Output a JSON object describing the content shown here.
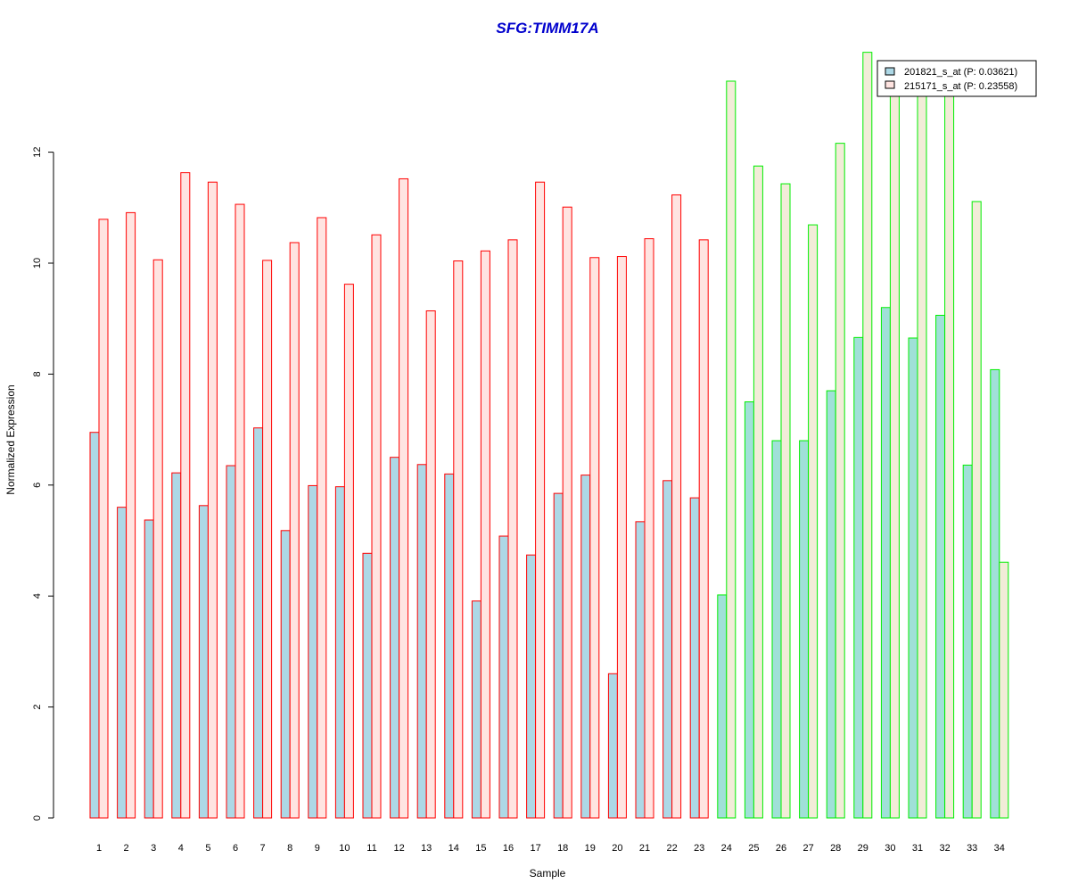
{
  "chart_data": {
    "type": "bar",
    "title": "SFG:TIMM17A",
    "xlabel": "Sample",
    "ylabel": "Normalized Expression",
    "ylim": [
      0,
      14
    ],
    "yticks": [
      "0",
      "2",
      "4",
      "6",
      "8",
      "10",
      "12"
    ],
    "categories": [
      "1",
      "2",
      "3",
      "4",
      "5",
      "6",
      "7",
      "8",
      "9",
      "10",
      "11",
      "12",
      "13",
      "14",
      "15",
      "16",
      "17",
      "18",
      "19",
      "20",
      "21",
      "22",
      "23",
      "24",
      "25",
      "26",
      "27",
      "28",
      "29",
      "30",
      "31",
      "32",
      "33",
      "34"
    ],
    "series": [
      {
        "name": "201821_s_at (P: 0.03621)",
        "values": [
          6.95,
          5.6,
          5.37,
          6.22,
          5.63,
          6.35,
          7.03,
          5.18,
          5.99,
          5.97,
          4.77,
          6.5,
          6.37,
          6.2,
          3.91,
          5.08,
          4.74,
          5.85,
          6.18,
          2.6,
          5.34,
          6.08,
          5.77,
          4.02,
          7.5,
          6.8,
          6.8,
          7.7,
          8.66,
          9.2,
          8.65,
          9.06,
          6.36,
          8.08
        ]
      },
      {
        "name": "215171_s_at (P: 0.23558)",
        "values": [
          10.79,
          10.91,
          10.06,
          11.63,
          11.46,
          11.06,
          10.05,
          10.37,
          10.82,
          9.62,
          10.51,
          11.52,
          9.14,
          10.04,
          10.22,
          10.42,
          11.46,
          11.01,
          10.1,
          10.12,
          10.44,
          11.23,
          10.42,
          13.28,
          11.75,
          11.43,
          10.69,
          12.16,
          13.8,
          13.1,
          13.1,
          13.1,
          11.11,
          4.61
        ]
      }
    ],
    "groups": [
      {
        "from": 1,
        "to": 23,
        "border": "#ff0000",
        "fills": [
          "#add8e6",
          "#ffe4e1"
        ]
      },
      {
        "from": 24,
        "to": 34,
        "border": "#00ee00",
        "fills": [
          "#a0e0d8",
          "#f2ecd8"
        ]
      }
    ],
    "title_color": "#0000cd",
    "legend_position": "top-right",
    "grid": false
  }
}
